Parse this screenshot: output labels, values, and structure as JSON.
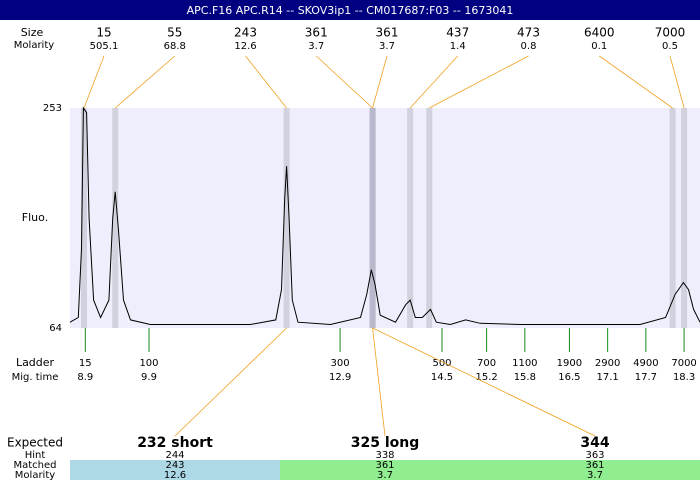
{
  "chart_data": {
    "type": "line",
    "title": "APC.F16  APC.R14 -- SKOV3ip1 -- CM017687:F03 -- 1673041",
    "top_labels": [
      "Size",
      "Molarity"
    ],
    "y_label": "Fluo.",
    "color": "#000000",
    "x": [
      8.66,
      8.79,
      8.84,
      8.87,
      8.92,
      8.96,
      9.03,
      9.14,
      9.27,
      9.33,
      9.37,
      9.42,
      9.5,
      9.61,
      9.92,
      10.71,
      11.49,
      11.89,
      11.98,
      12.03,
      12.06,
      12.1,
      12.15,
      12.24,
      12.75,
      13.22,
      13.32,
      13.39,
      13.45,
      13.53,
      13.77,
      13.93,
      14.0,
      14.08,
      14.19,
      14.32,
      14.41,
      14.63,
      14.87,
      15.1,
      15.73,
      16.36,
      16.98,
      17.61,
      18.01,
      18.16,
      18.29,
      18.37,
      18.45,
      18.55
    ],
    "values": [
      69,
      73,
      132,
      253,
      249,
      158,
      88,
      73,
      88,
      158,
      181,
      149,
      88,
      71,
      67,
      67,
      67,
      71,
      97,
      175,
      203,
      158,
      88,
      69,
      67,
      73,
      93,
      114,
      101,
      75,
      69,
      84,
      88,
      73,
      73,
      80,
      69,
      67,
      71,
      68,
      67,
      67,
      67,
      67,
      73,
      93,
      103,
      97,
      80,
      69
    ],
    "xlim": [
      8.66,
      18.55
    ],
    "ylim": [
      64,
      253
    ],
    "yticks": [
      64,
      253
    ],
    "peaks": {
      "sizes": [
        15,
        55,
        243,
        361,
        361,
        437,
        473,
        6400,
        7000
      ],
      "molarity": [
        505.1,
        68.8,
        12.6,
        3.7,
        3.7,
        1.4,
        0.8,
        0.1,
        0.5
      ],
      "times": [
        8.88,
        9.37,
        12.06,
        13.41,
        13.41,
        14.0,
        14.3,
        18.12,
        18.3
      ]
    },
    "ladder": {
      "label": "Ladder",
      "time_label": "Mig. time",
      "sizes": [
        15,
        100,
        300,
        500,
        700,
        1100,
        1900,
        2900,
        4900,
        7000
      ],
      "times": [
        8.9,
        9.9,
        12.9,
        14.5,
        15.2,
        15.8,
        16.5,
        17.1,
        17.7,
        18.3
      ]
    },
    "expected": {
      "labels": [
        "Expected",
        "Hint",
        "Matched",
        "Molarity"
      ],
      "items": [
        {
          "name": "232 short",
          "hint": 244,
          "matched": 243,
          "molarity": 12.6
        },
        {
          "name": "325 long",
          "hint": 338,
          "matched": 361,
          "molarity": 3.7
        },
        {
          "name": "344",
          "hint": 363,
          "matched": 361,
          "molarity": 3.7
        }
      ]
    }
  }
}
